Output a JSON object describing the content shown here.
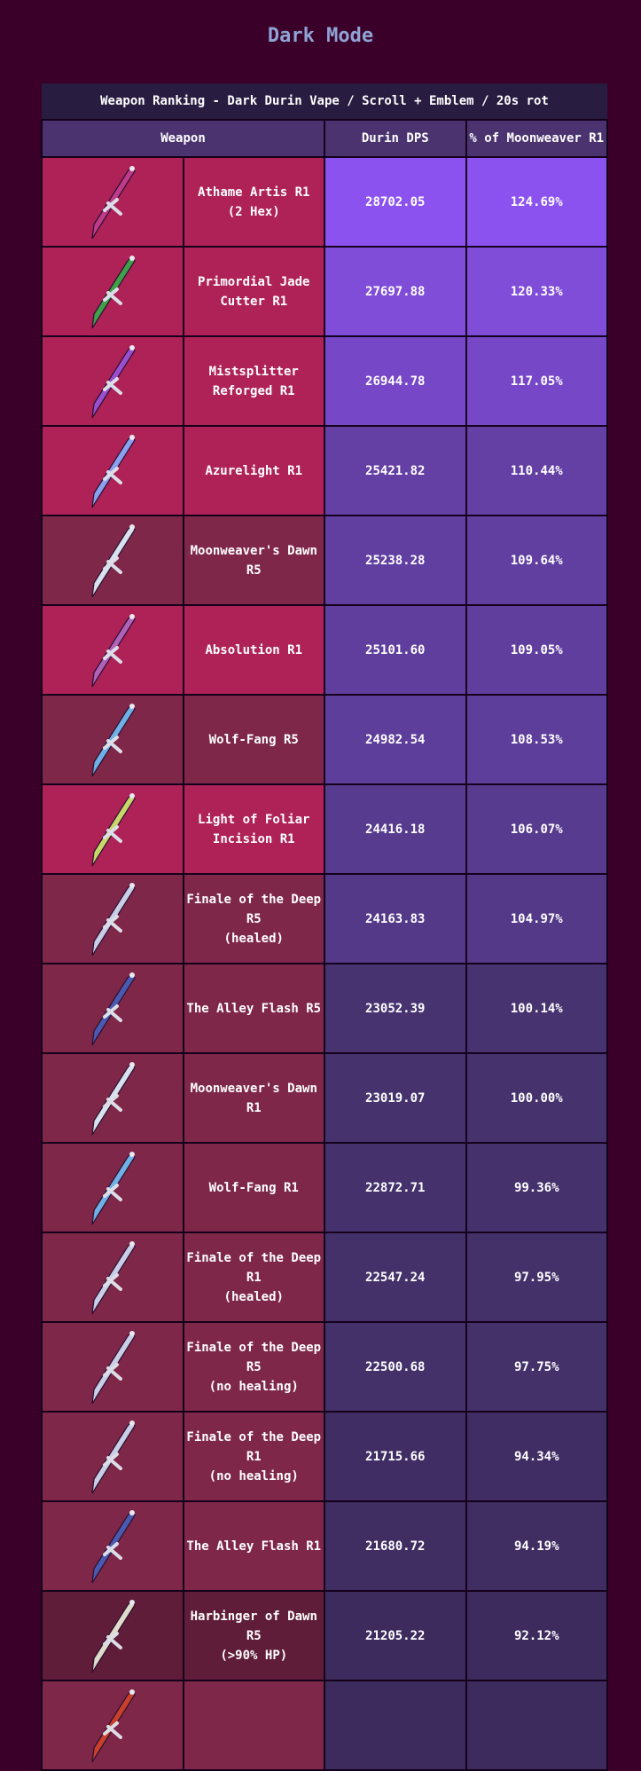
{
  "page_title": "Dark Mode",
  "table": {
    "caption": "Weapon Ranking - Dark Durin Vape / Scroll + Emblem / 20s rot",
    "headers": [
      "Weapon",
      "Durin DPS",
      "% of Moonweaver R1"
    ],
    "rarity_colors": {
      "5": "#ae2257",
      "4": "#7e2749",
      "3": "#5f1d3a"
    },
    "value_colors": {
      "high": "#8c52f0",
      "mid": "#46336e",
      "low": "#3e2b5e"
    },
    "rows": [
      {
        "name": "Athame Artis R1",
        "note": "(2 Hex)",
        "dps": "28702.05",
        "pct": "124.69%",
        "rarity": 5,
        "icon": "athame-artis-icon",
        "hue": "#c03a8a"
      },
      {
        "name": "Primordial Jade Cutter R1",
        "note": "",
        "dps": "27697.88",
        "pct": "120.33%",
        "rarity": 5,
        "icon": "primordial-jade-cutter-icon",
        "hue": "#3fa04a"
      },
      {
        "name": "Mistsplitter Reforged R1",
        "note": "",
        "dps": "26944.78",
        "pct": "117.05%",
        "rarity": 5,
        "icon": "mistsplitter-reforged-icon",
        "hue": "#9a4fd0"
      },
      {
        "name": "Azurelight R1",
        "note": "",
        "dps": "25421.82",
        "pct": "110.44%",
        "rarity": 5,
        "icon": "azurelight-icon",
        "hue": "#8aa0f0"
      },
      {
        "name": "Moonweaver's Dawn R5",
        "note": "",
        "dps": "25238.28",
        "pct": "109.64%",
        "rarity": 4,
        "icon": "moonweavers-dawn-icon",
        "hue": "#d8e2ee"
      },
      {
        "name": "Absolution R1",
        "note": "",
        "dps": "25101.60",
        "pct": "109.05%",
        "rarity": 5,
        "icon": "absolution-icon",
        "hue": "#b062b8"
      },
      {
        "name": "Wolf-Fang R5",
        "note": "",
        "dps": "24982.54",
        "pct": "108.53%",
        "rarity": 4,
        "icon": "wolf-fang-icon",
        "hue": "#6fb0e6"
      },
      {
        "name": "Light of Foliar Incision R1",
        "note": "",
        "dps": "24416.18",
        "pct": "106.07%",
        "rarity": 5,
        "icon": "light-of-foliar-incision-icon",
        "hue": "#c8d66a"
      },
      {
        "name": "Finale of the Deep R5",
        "note": "(healed)",
        "dps": "24163.83",
        "pct": "104.97%",
        "rarity": 4,
        "icon": "finale-of-the-deep-icon",
        "hue": "#c9cde6"
      },
      {
        "name": "The Alley Flash R5",
        "note": "",
        "dps": "23052.39",
        "pct": "100.14%",
        "rarity": 4,
        "icon": "the-alley-flash-icon",
        "hue": "#4a5ab0"
      },
      {
        "name": "Moonweaver's Dawn R1",
        "note": "",
        "dps": "23019.07",
        "pct": "100.00%",
        "rarity": 4,
        "icon": "moonweavers-dawn-icon",
        "hue": "#d8e2ee"
      },
      {
        "name": "Wolf-Fang R1",
        "note": "",
        "dps": "22872.71",
        "pct": "99.36%",
        "rarity": 4,
        "icon": "wolf-fang-icon",
        "hue": "#6fb0e6"
      },
      {
        "name": "Finale of the Deep R1",
        "note": "(healed)",
        "dps": "22547.24",
        "pct": "97.95%",
        "rarity": 4,
        "icon": "finale-of-the-deep-icon",
        "hue": "#c9cde6"
      },
      {
        "name": "Finale of the Deep R5",
        "note": "(no healing)",
        "dps": "22500.68",
        "pct": "97.75%",
        "rarity": 4,
        "icon": "finale-of-the-deep-icon",
        "hue": "#c9cde6"
      },
      {
        "name": "Finale of the Deep R1",
        "note": "(no healing)",
        "dps": "21715.66",
        "pct": "94.34%",
        "rarity": 4,
        "icon": "finale-of-the-deep-icon",
        "hue": "#c9cde6"
      },
      {
        "name": "The Alley Flash R1",
        "note": "",
        "dps": "21680.72",
        "pct": "94.19%",
        "rarity": 4,
        "icon": "the-alley-flash-icon",
        "hue": "#4a5ab0"
      },
      {
        "name": "Harbinger of Dawn R5",
        "note": "(>90% HP)",
        "dps": "21205.22",
        "pct": "92.12%",
        "rarity": 3,
        "icon": "harbinger-of-dawn-icon",
        "hue": "#e0dccb"
      },
      {
        "name": "",
        "note": "",
        "dps": "",
        "pct": "",
        "rarity": 4,
        "icon": "sword-icon",
        "hue": "#c8402a"
      }
    ]
  }
}
